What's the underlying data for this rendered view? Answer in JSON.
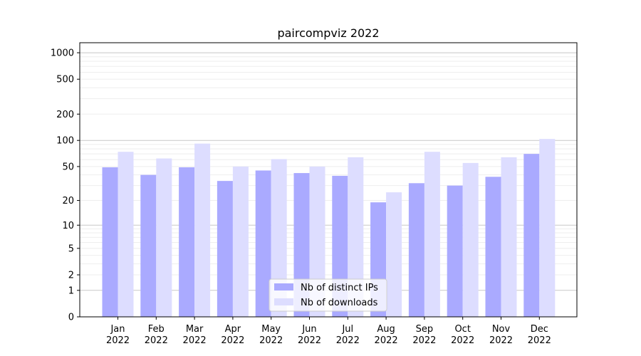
{
  "chart_data": {
    "type": "bar",
    "title": "paircompviz 2022",
    "xlabel": "",
    "ylabel": "",
    "scale": "log(1+y)",
    "ylim": [
      0,
      1300
    ],
    "yticks": [
      0,
      1,
      2,
      5,
      10,
      20,
      50,
      100,
      200,
      500,
      1000
    ],
    "ytick_labels": [
      "0",
      "1",
      "2",
      "5",
      "10",
      "20",
      "50",
      "100",
      "200",
      "500",
      "1000"
    ],
    "grid": true,
    "legend_position": "bottom-center",
    "categories": [
      [
        "Jan",
        "2022"
      ],
      [
        "Feb",
        "2022"
      ],
      [
        "Mar",
        "2022"
      ],
      [
        "Apr",
        "2022"
      ],
      [
        "May",
        "2022"
      ],
      [
        "Jun",
        "2022"
      ],
      [
        "Jul",
        "2022"
      ],
      [
        "Aug",
        "2022"
      ],
      [
        "Sep",
        "2022"
      ],
      [
        "Oct",
        "2022"
      ],
      [
        "Nov",
        "2022"
      ],
      [
        "Dec",
        "2022"
      ]
    ],
    "series": [
      {
        "name": "Nb of distinct IPs",
        "color": "#aaaaff",
        "values": [
          49,
          40,
          49,
          34,
          45,
          42,
          39,
          19,
          32,
          30,
          38,
          70
        ]
      },
      {
        "name": "Nb of downloads",
        "color": "#ddddff",
        "values": [
          74,
          62,
          92,
          50,
          61,
          50,
          64,
          25,
          74,
          55,
          64,
          104
        ]
      }
    ]
  }
}
